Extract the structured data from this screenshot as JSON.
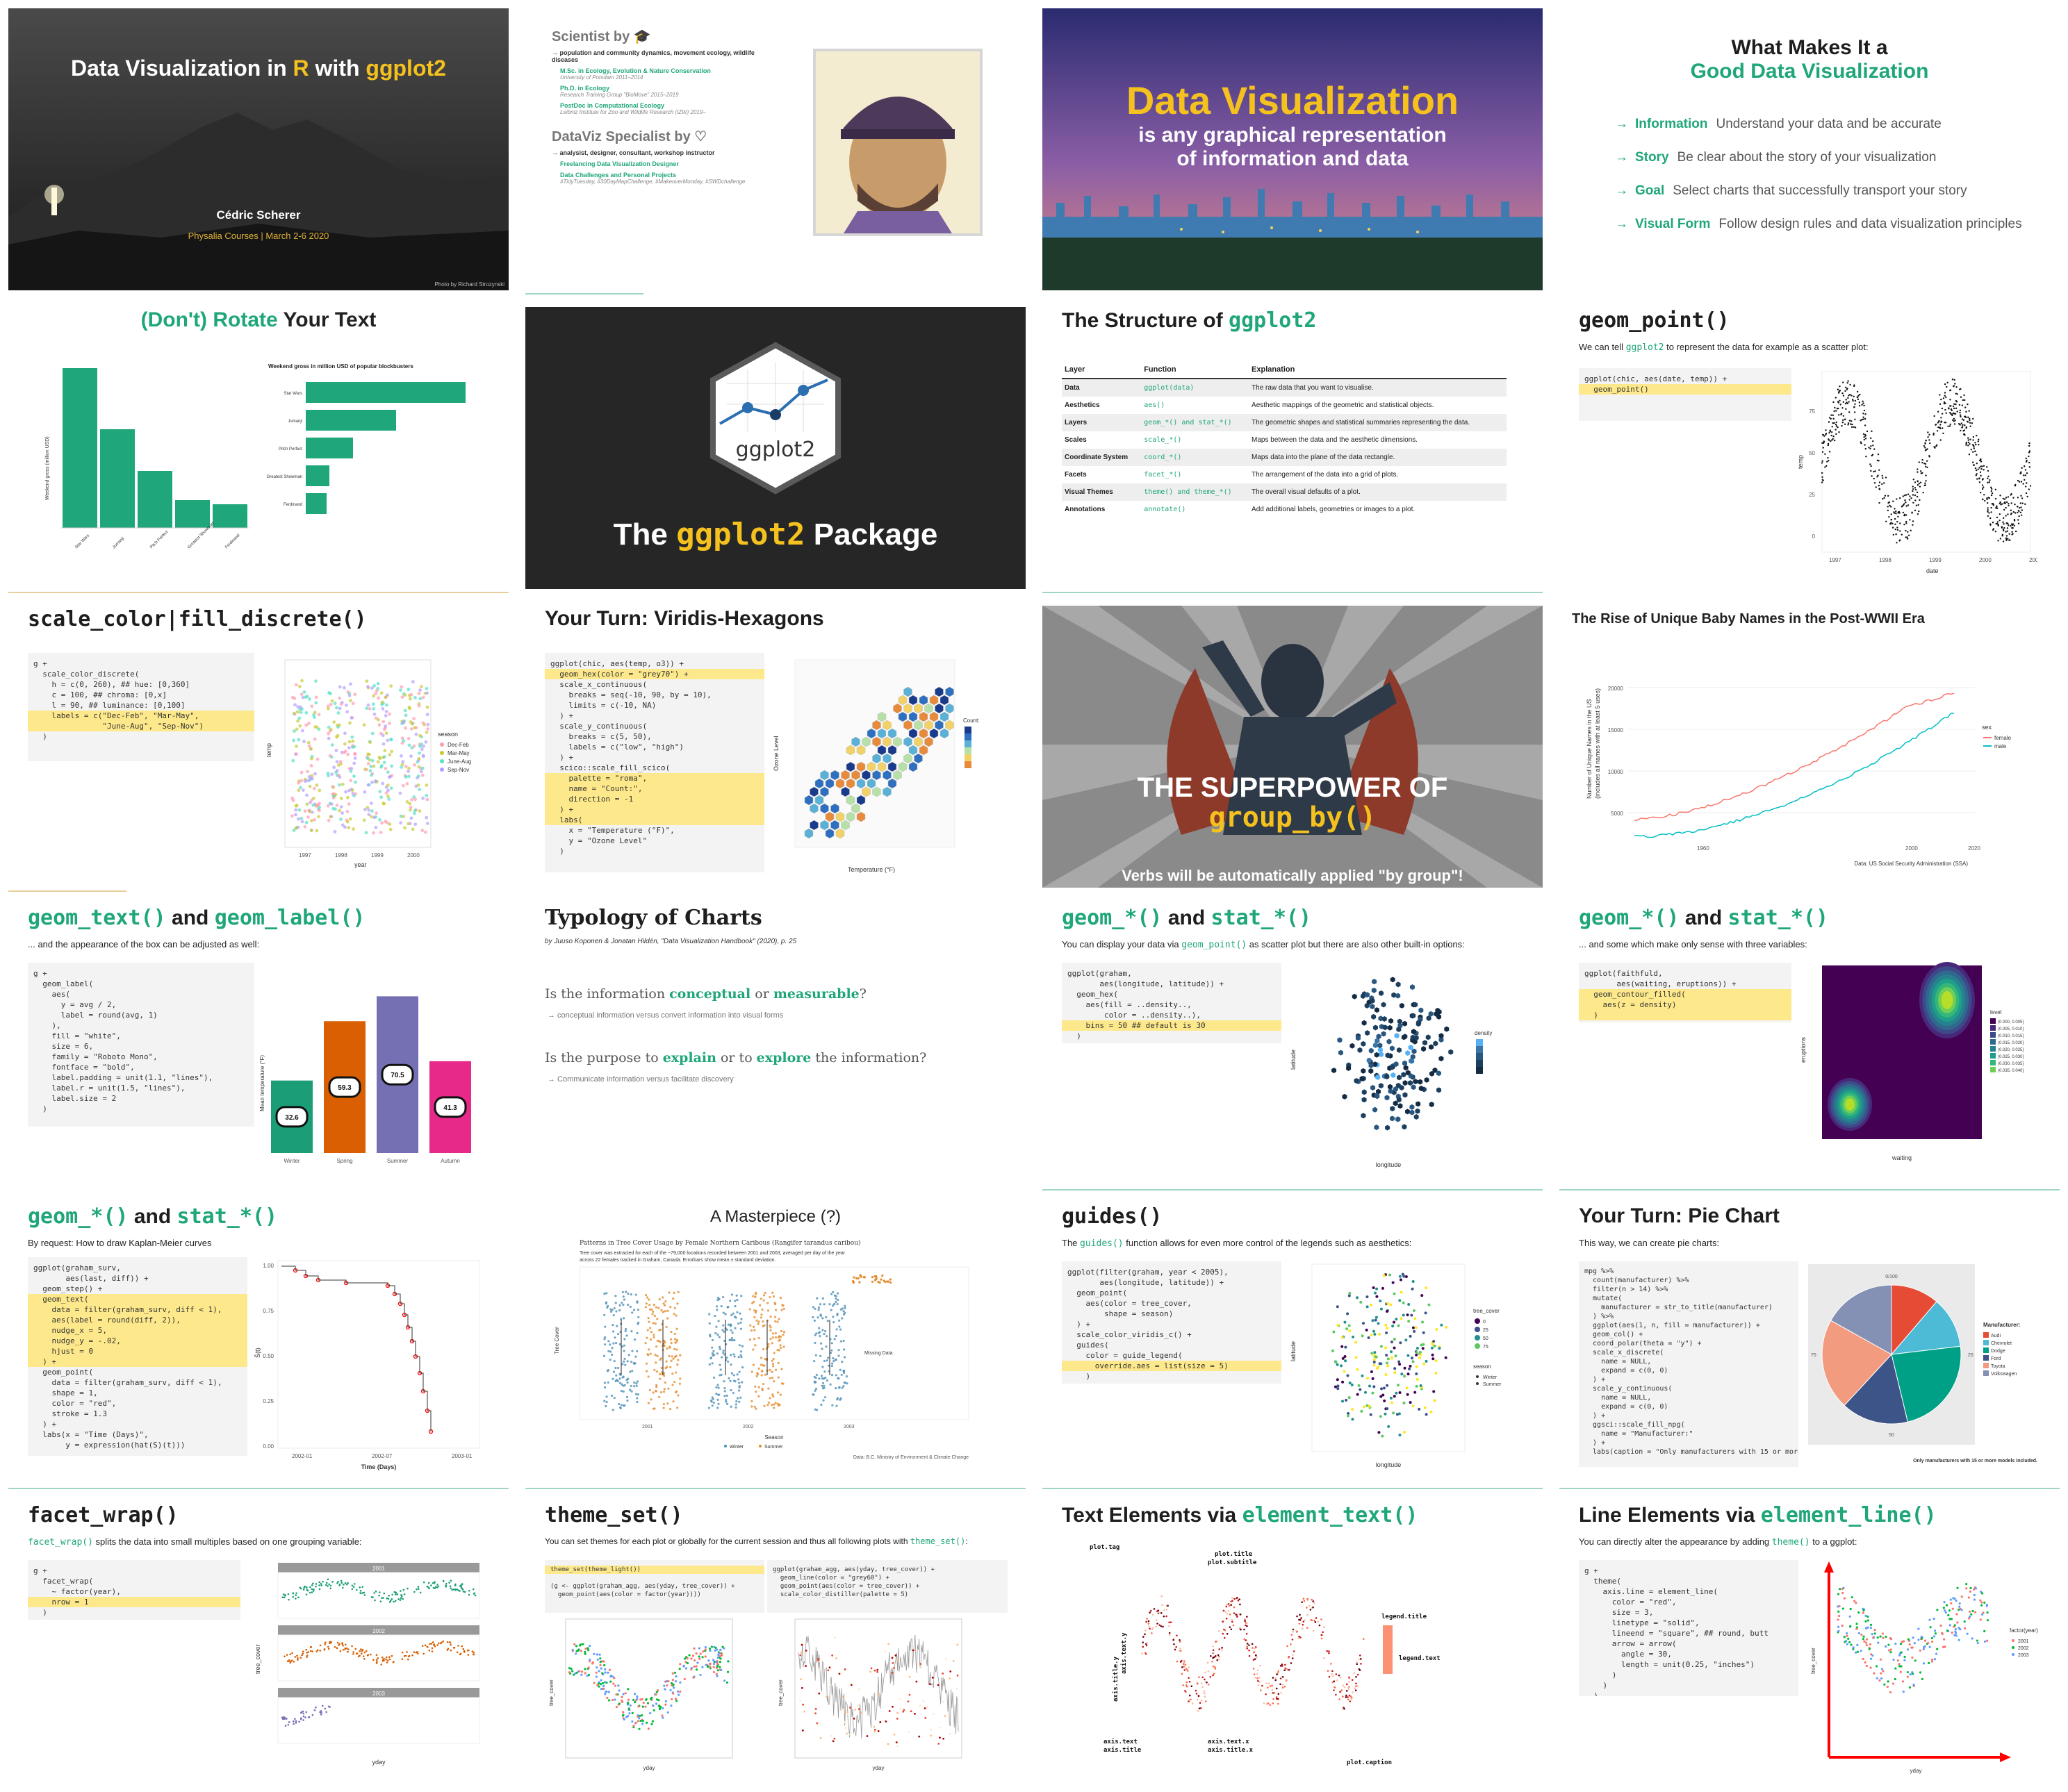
{
  "slides": [
    {
      "id": "s1",
      "title_a": "Data Visualization in ",
      "title_r": "R",
      "title_with": " with ",
      "title_pkg": "ggplot2",
      "author": "Cédric Scherer",
      "course": "Physalia Courses  |  March 2-6 2020",
      "photo": "Photo by Richard Strozynski"
    },
    {
      "id": "s2",
      "h1": "Scientist by",
      "items1": [
        {
          "t": "→ population and community dynamics, movement ecology, wildlife diseases"
        },
        {
          "t": "M.Sc. in Ecology, Evolution & Nature Conservation",
          "s": "University of Potsdam  2011–2014"
        },
        {
          "t": "Ph.D. in Ecology",
          "s": "Research Training Group \"BioMove\"  2015–2019"
        },
        {
          "t": "PostDoc in Computational Ecology",
          "s": "Leibniz Institute for Zoo and Wildlife Research (IZW)  2019–"
        }
      ],
      "h2": "DataViz Specialist by",
      "items2": [
        {
          "t": "→ analysist, designer, consultant, workshop instructor"
        },
        {
          "t": "Freelancing Data Visualization Designer"
        },
        {
          "t": "Data Challenges and Personal Projects",
          "s": "#TidyTuesday, #30DayMapChallenge, #MakeoverMonday, #SWDchallenge"
        }
      ]
    },
    {
      "id": "s3",
      "t1": "Data Visualization",
      "t2": "is any graphical representation",
      "t3": "of information and data"
    },
    {
      "id": "s4",
      "t1": "What Makes It a",
      "t2": "Good Data Visualization",
      "items": [
        {
          "k": "Information",
          "v": "Understand your data and be accurate"
        },
        {
          "k": "Story",
          "v": "Be clear about the story of your visualization"
        },
        {
          "k": "Goal",
          "v": "Select charts that successfully transport your story"
        },
        {
          "k": "Visual Form",
          "v": "Follow design rules and data visualization principles"
        }
      ]
    },
    {
      "id": "s5",
      "title_a": "(Don't) Rotate ",
      "title_b": "Your Text",
      "right_title": "Weekend gross in million USD of popular blockbusters",
      "ylab": "Weekend gross (million USD)",
      "cats": [
        "Star Wars",
        "Jumanji",
        "Pitch Perfect",
        "Greatest Showman",
        "Ferdinand"
      ]
    },
    {
      "id": "s6",
      "hex_label": "ggplot2",
      "t_a": "The ",
      "t_b": "ggplot2",
      "t_c": " Package"
    },
    {
      "id": "s7",
      "t_a": "The Structure of ",
      "t_b": "ggplot2",
      "headers": [
        "Layer",
        "Function",
        "Explanation"
      ],
      "rows": [
        [
          "Data",
          "ggplot(data)",
          "The raw data that you want to visualise."
        ],
        [
          "Aesthetics",
          "aes()",
          "Aesthetic mappings of the geometric and statistical objects."
        ],
        [
          "Layers",
          "geom_*() and stat_*()",
          "The geometric shapes and statistical summaries representing the data."
        ],
        [
          "Scales",
          "scale_*()",
          "Maps between the data and the aesthetic dimensions."
        ],
        [
          "Coordinate System",
          "coord_*()",
          "Maps data into the plane of the data rectangle."
        ],
        [
          "Facets",
          "facet_*()",
          "The arrangement of the data into a grid of plots."
        ],
        [
          "Visual Themes",
          "theme() and theme_*()",
          "The overall visual defaults of a plot."
        ],
        [
          "Annotations",
          "annotate()",
          "Add additional labels, geometries or images to a plot."
        ]
      ]
    },
    {
      "id": "s8",
      "title": "geom_point()",
      "sub_a": "We can tell ",
      "sub_b": "ggplot2",
      "sub_c": " to represent the data for example as a scatter plot:",
      "code": "ggplot(chic, aes(date, temp)) +\n  geom_point()",
      "ylab": "temp",
      "xlab": "date",
      "xticks": [
        "1997",
        "1998",
        "1999",
        "2000",
        "2001"
      ],
      "yticks": [
        "0",
        "25",
        "50",
        "75"
      ]
    },
    {
      "id": "s9",
      "title": "scale_color|fill_discrete()",
      "code": "g +\n  scale_color_discrete(\n    h = c(0, 260), ## hue: [0,360]\n    c = 100, ## chroma: [0,x]\n    l = 90, ## luminance: [0,100]\n    labels = c(\"Dec-Feb\", \"Mar-May\",\n               \"June-Aug\", \"Sep-Nov\")\n  )",
      "legend_title": "season",
      "legend": [
        "Dec-Feb",
        "Mar-May",
        "June-Aug",
        "Sep-Nov"
      ],
      "xlab": "year",
      "ylab": "temp",
      "xticks": [
        "1997",
        "1998",
        "1999",
        "2000"
      ]
    },
    {
      "id": "s10",
      "title": "Your Turn: Viridis-Hexagons",
      "code": "ggplot(chic, aes(temp, o3)) +\n  geom_hex(color = \"grey70\") +\n  scale_x_continuous(\n    breaks = seq(-10, 90, by = 10),\n    limits = c(-10, NA)\n  ) +\n  scale_y_continuous(\n    breaks = c(5, 50),\n    labels = c(\"low\", \"high\")\n  ) +\n  scico::scale_fill_scico(\n    palette = \"roma\",\n    name = \"Count:\",\n    direction = -1\n  ) +\n  labs(\n    x = \"Temperature (°F)\",\n    y = \"Ozone Level\"\n  )",
      "xlab": "Temperature (°F)",
      "ylab": "Ozone Level",
      "legend": "Count:"
    },
    {
      "id": "s11",
      "t1": "THE SUPERPOWER OF",
      "t2": "group_by()",
      "t3": "Verbs will be automatically applied \"by group\"!"
    },
    {
      "id": "s12",
      "title": "The Rise of Unique Baby Names in the Post-WWII Era",
      "ylab": "Number of Unique Names in the US",
      "ylab2": "(includes all names with at least 5 uses)",
      "legend_title": "sex",
      "legend": [
        "female",
        "male"
      ],
      "caption": "Data: US Social Security Administration (SSA)",
      "xticks": [
        "1960",
        "2000",
        "2020"
      ],
      "yticks": [
        "5000",
        "10000",
        "15000",
        "20000"
      ]
    },
    {
      "id": "s13",
      "title_a": "geom_text()",
      "title_b": " and ",
      "title_c": "geom_label()",
      "sub": "... and the appearance of the box can be adjusted as well:",
      "code": "g +\n  geom_label(\n    aes(\n      y = avg / 2,\n      label = round(avg, 1)\n    ),\n    fill = \"white\",\n    size = 6,\n    family = \"Roboto Mono\",\n    fontface = \"bold\",\n    label.padding = unit(1.1, \"lines\"),\n    label.r = unit(1.5, \"lines\"),\n    label.size = 2\n  )",
      "ylab": "Mean temperature (°F)",
      "cats": [
        "Winter",
        "Spring",
        "Summer",
        "Autumn"
      ],
      "vals": [
        32.6,
        59.3,
        70.5,
        41.3
      ],
      "colors": [
        "#1b9e77",
        "#d95f02",
        "#7570b3",
        "#e7298a"
      ]
    },
    {
      "id": "s14",
      "title": "Typology of Charts",
      "cite": "by Juuso Koponen & Jonatan Hildén, \"Data Visualization Handbook\" (2020), p. 25",
      "q1_a": "Is the information ",
      "q1_b": "conceptual",
      "q1_c": " or ",
      "q1_d": "measurable",
      "q1_e": "?",
      "a1": "→ conceptual information versus convert information into visual forms",
      "q2_a": "Is the purpose to ",
      "q2_b": "explain",
      "q2_c": " or to ",
      "q2_d": "explore",
      "q2_e": " the information?",
      "a2": "→ Communicate information versus facilitate discovery"
    },
    {
      "id": "s15",
      "title_a": "geom_*()",
      "title_b": " and ",
      "title_c": "stat_*()",
      "sub_a": "You can display your data via ",
      "sub_b": "geom_point()",
      "sub_c": " as scatter plot but there are also other built-in options:",
      "code": "ggplot(graham,\n       aes(longitude, latitude)) +\n  geom_hex(\n    aes(fill = ..density..,\n        color = ..density..),\n    bins = 50 ## default is 30\n  )",
      "xlab": "longitude",
      "ylab": "latitude",
      "legend": "density"
    },
    {
      "id": "s16",
      "title_a": "geom_*()",
      "title_b": " and ",
      "title_c": "stat_*()",
      "sub": "... and some which make only sense with three variables:",
      "code": "ggplot(faithfuld,\n       aes(waiting, eruptions)) +\n  geom_contour_filled(\n    aes(z = density)\n  )",
      "xlab": "waiting",
      "ylab": "eruptions",
      "legend_title": "level",
      "legend": [
        "(0.000, 0.005]",
        "(0.005, 0.010]",
        "(0.010, 0.015]",
        "(0.015, 0.020]",
        "(0.020, 0.025]",
        "(0.025, 0.030]",
        "(0.030, 0.035]",
        "(0.035, 0.040]"
      ]
    },
    {
      "id": "s17",
      "title_a": "geom_*()",
      "title_b": " and ",
      "title_c": "stat_*()",
      "sub": "By request: How to draw Kaplan-Meier curves",
      "code": "ggplot(graham_surv,\n       aes(last, diff)) +\n  geom_step() +\n  geom_text(\n    data = filter(graham_surv, diff < 1),\n    aes(label = round(diff, 2)),\n    nudge_x = 5,\n    nudge_y = -.02,\n    hjust = 0\n  ) +\n  geom_point(\n    data = filter(graham_surv, diff < 1),\n    shape = 1,\n    color = \"red\",\n    stroke = 1.3\n  ) +\n  labs(x = \"Time (Days)\",\n       y = expression(hat(S)(t)))",
      "xlab": "Time (Days)",
      "ylab": "Ŝ(t)",
      "xticks": [
        "2002-01",
        "2002-07",
        "2003-01"
      ],
      "yticks": [
        "1.00",
        "0.75",
        "0.50",
        "0.25",
        "0.00"
      ]
    },
    {
      "id": "s18",
      "title": "A Masterpiece (?)",
      "p_title": "Patterns in Tree Cover Usage by Female Northern Caribous (Rangifer tarandus caribou)",
      "p_sub": "Tree cover was extracted for each of the ~79,000 locations recorded between 2001 and 2003, averaged per day of the year across 22 females tracked in Graham, Canada. Errorbars show mean ± standard deviation.",
      "xlab": "Season",
      "ylab": "Tree Cover",
      "legend": [
        "Winter",
        "Summer"
      ],
      "caption": "Data: B.C. Ministry of Environment & Climate Change",
      "missing": "Missing Data",
      "years": [
        "2001",
        "2002",
        "2003"
      ]
    },
    {
      "id": "s19",
      "title": "guides()",
      "sub_a": "The ",
      "sub_b": "guides()",
      "sub_c": " function allows for even more control of the legends such as aesthetics:",
      "code": "ggplot(filter(graham, year < 2005),\n       aes(longitude, latitude)) +\n  geom_point(\n    aes(color = tree_cover,\n        shape = season)\n  ) +\n  scale_color_viridis_c() +\n  guides(\n    color = guide_legend(\n      override.aes = list(size = 5)\n    )\n  )",
      "xlab": "longitude",
      "ylab": "latitude",
      "legend_title": "tree_cover",
      "legend": [
        "0",
        "25",
        "50",
        "75"
      ],
      "legend2_title": "season",
      "legend2": [
        "Winter",
        "Summer"
      ]
    },
    {
      "id": "s20",
      "title": "Your Turn: Pie Chart",
      "sub": "This way, we can create pie charts:",
      "code": "mpg %>%\n  count(manufacturer) %>%\n  filter(n > 14) %>%\n  mutate(\n    manufacturer = str_to_title(manufacturer)\n  ) %>%\n  ggplot(aes(1, n, fill = manufacturer)) +\n  geom_col() +\n  coord_polar(theta = \"y\") +\n  scale_x_discrete(\n    name = NULL,\n    expand = c(0, 0)\n  ) +\n  scale_y_continuous(\n    name = NULL,\n    expand = c(0, 0)\n  ) +\n  ggsci::scale_fill_npg(\n    name = \"Manufacturer:\"\n  ) +\n  labs(caption = \"Only manufacturers with 15 or more models included.\")",
      "legend_title": "Manufacturer:",
      "legend": [
        "Audi",
        "Chevrolet",
        "Dodge",
        "Ford",
        "Toyota",
        "Volkswagen"
      ],
      "colors": [
        "#e64b35",
        "#4dbbd5",
        "#00a087",
        "#3c5488",
        "#f39b7f",
        "#8491b4"
      ],
      "caption": "Only manufacturers with 15 or more models included.",
      "ticks": [
        "0/100",
        "25",
        "50",
        "75"
      ]
    },
    {
      "id": "s21",
      "title": "facet_wrap()",
      "sub_a": "facet_wrap()",
      "sub_b": " splits the data into small multiples based on one grouping variable:",
      "code": "g +\n  facet_wrap(\n    ~ factor(year),\n    nrow = 1\n  )",
      "strips": [
        "2001",
        "2002",
        "2003"
      ],
      "xlab": "yday",
      "ylab": "tree_cover"
    },
    {
      "id": "s22",
      "title": "theme_set()",
      "sub_a": "You can set themes for each plot or globally for the current session and thus all following plots with ",
      "sub_b": "theme_set()",
      "sub_c": ":",
      "code1": "theme_set(theme_light())\n\n(g <- ggplot(graham_agg, aes(yday, tree_cover)) +\n  geom_point(aes(color = factor(year))))",
      "code2": "ggplot(graham_agg, aes(yday, tree_cover)) +\n  geom_line(color = \"grey60\") +\n  geom_point(aes(color = tree_cover)) +\n  scale_color_distiller(palette = 5)",
      "xlab": "yday",
      "ylab": "tree_cover"
    },
    {
      "id": "s23",
      "title_a": "Text Elements via ",
      "title_b": "element_text()",
      "labels": {
        "tag": "plot.tag",
        "title": "plot.title",
        "subtitle": "plot.subtitle",
        "legend_title": "legend.title",
        "legend_text": "legend.text",
        "axis_title_y": "axis.title.y",
        "axis_text_y": "axis.text.y",
        "axis_text": "axis.text",
        "axis_title": "axis.title",
        "axis_text_x": "axis.text.x",
        "axis_title_x": "axis.title.x",
        "caption": "plot.caption"
      }
    },
    {
      "id": "s24",
      "title_a": "Line Elements via ",
      "title_b": "element_line()",
      "sub_a": "You can directly alter the appearance by adding ",
      "sub_b": "theme()",
      "sub_c": " to a ggplot:",
      "code": "g +\n  theme(\n    axis.line = element_line(\n      color = \"red\",\n      size = 3,\n      linetype = \"solid\",\n      lineend = \"square\", ## round, butt\n      arrow = arrow(\n        angle = 30,\n        length = unit(0.25, \"inches\")\n      )\n    )\n  )",
      "legend_title": "factor(year)",
      "legend": [
        "2001",
        "2002",
        "2003"
      ],
      "xlab": "yday",
      "ylab": "tree_cover"
    }
  ],
  "colors": {
    "accent": "#1fa67a",
    "highlight": "#fde98b",
    "gold": "#f4c11e",
    "dark": "#262626"
  }
}
